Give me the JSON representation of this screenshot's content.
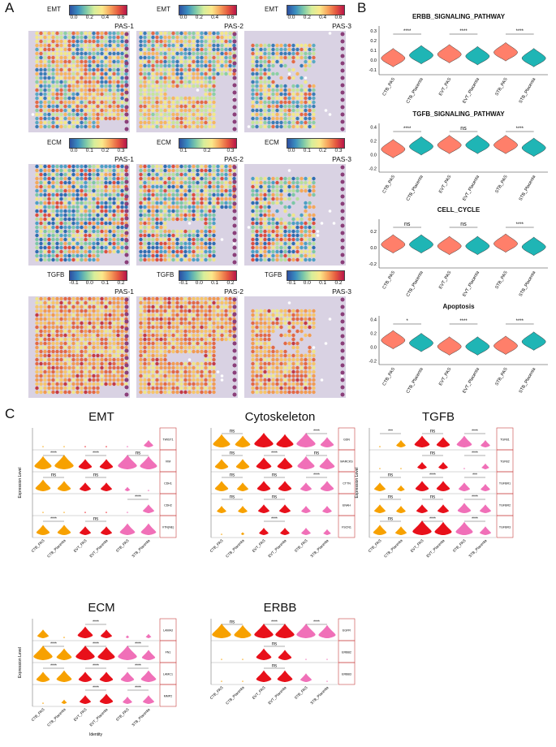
{
  "panel_labels": {
    "a": "A",
    "b": "B",
    "c": "C"
  },
  "colors": {
    "ctb": "#ff7f6a",
    "placenta": "#1fb5b5",
    "orange": "#f7a100",
    "red": "#e8101a",
    "pink": "#f070b8",
    "frame": "#c84040"
  },
  "panelA": {
    "rows": [
      {
        "metric": "EMT",
        "ticks": [
          [
            "0.0",
            "0.2",
            "0.4",
            "0.6"
          ],
          [
            "0.0",
            "0.2",
            "0.4",
            "0.6"
          ],
          [
            "0.0",
            "0.2",
            "0.4",
            "0.6"
          ]
        ],
        "samples": [
          "PAS-1",
          "PAS-2",
          "PAS-3"
        ]
      },
      {
        "metric": "ECM",
        "ticks": [
          [
            "0.0",
            "0.1",
            "0.2",
            "0.3"
          ],
          [
            "0.1",
            "0.2",
            "0.3"
          ],
          [
            "0.0",
            "0.1",
            "0.2",
            "0.3"
          ]
        ],
        "samples": [
          "PAS-1",
          "PAS-2",
          "PAS-3"
        ]
      },
      {
        "metric": "TGFB",
        "ticks": [
          [
            "-0.1",
            "0.0",
            "0.1",
            "0.2"
          ],
          [
            "-0.1",
            "0.0",
            "0.1",
            "0.2"
          ],
          [
            "-0.1",
            "0.0",
            "0.1",
            "0.2"
          ]
        ],
        "samples": [
          "PAS-1",
          "PAS-2",
          "PAS-3"
        ]
      }
    ]
  },
  "chart_data": [
    {
      "type": "violin",
      "panel": "B",
      "title": "ERBB_SIGNALING_PATHWAY",
      "categories": [
        "CTB_PAS",
        "CTB_Placenta",
        "EVT_PAS",
        "EVT_Placenta",
        "STB_PAS",
        "STB_Placenta"
      ],
      "ylim": [
        -0.15,
        0.35
      ],
      "yticks": [
        "0.3",
        "0.2",
        "0.1",
        "0.0",
        "-0.1"
      ],
      "medians": [
        0.02,
        0.05,
        0.06,
        0.04,
        0.08,
        0.02
      ],
      "comparisons": [
        "****",
        "****",
        "****"
      ]
    },
    {
      "type": "violin",
      "panel": "B",
      "title": "TGFB_SIGNALING_PATHWAY",
      "categories": [
        "CTB_PAS",
        "CTB_Placenta",
        "EVT_PAS",
        "EVT_Placenta",
        "STB_PAS",
        "STB_Placenta"
      ],
      "ylim": [
        -0.25,
        0.45
      ],
      "yticks": [
        "0.4",
        "0.2",
        "0.0",
        "-0.2"
      ],
      "medians": [
        0.08,
        0.12,
        0.14,
        0.14,
        0.14,
        0.1
      ],
      "comparisons": [
        "****",
        "ns",
        "****"
      ]
    },
    {
      "type": "violin",
      "panel": "B",
      "title": "CELL_CYCLE",
      "categories": [
        "CTB_PAS",
        "CTB_Placenta",
        "EVT_PAS",
        "EVT_Placenta",
        "STB_PAS",
        "STB_Placenta"
      ],
      "ylim": [
        -0.25,
        0.35
      ],
      "yticks": [
        "0.2",
        "0.0",
        "-0.2"
      ],
      "medians": [
        0.04,
        0.04,
        0.02,
        0.02,
        0.05,
        0.01
      ],
      "comparisons": [
        "ns",
        "ns",
        "****"
      ]
    },
    {
      "type": "violin",
      "panel": "B",
      "title": "Apoptosis",
      "categories": [
        "CTB_PAS",
        "CTB_Placenta",
        "EVT_PAS",
        "EVT_Placenta",
        "STB_PAS",
        "STB_Placenta"
      ],
      "ylim": [
        -0.25,
        0.45
      ],
      "yticks": [
        "0.4",
        "0.2",
        "0.0",
        "-0.2"
      ],
      "medians": [
        0.1,
        0.06,
        0.01,
        0.01,
        0.02,
        0.08
      ],
      "comparisons": [
        "*",
        "****",
        "****"
      ]
    },
    {
      "type": "violin",
      "panel": "C",
      "title": "EMT",
      "ylabel": "Expression Level",
      "categories": [
        "CTB_PAS",
        "CTB_Placenta",
        "EVT_PAS",
        "EVT_Placenta",
        "STB_PAS",
        "STB_Placenta"
      ],
      "genes": [
        {
          "name": "TWIST1",
          "sizes": [
            0.05,
            0.05,
            0.05,
            0.05,
            0.1,
            0.5
          ],
          "comparisons": [
            "",
            "",
            ""
          ]
        },
        {
          "name": "VIM",
          "sizes": [
            0.9,
            1,
            0.7,
            0.7,
            1,
            0.9
          ],
          "comparisons": [
            "****",
            "****",
            "ns"
          ]
        },
        {
          "name": "CDH1",
          "sizes": [
            0.8,
            0.7,
            0.6,
            0.6,
            0.3,
            0.1
          ],
          "comparisons": [
            "ns",
            "ns",
            ""
          ]
        },
        {
          "name": "CDH2",
          "sizes": [
            0.05,
            0.05,
            0.05,
            0.05,
            0.1,
            0.6
          ],
          "comparisons": [
            "",
            "",
            "****"
          ]
        },
        {
          "name": "VTN(NE)",
          "sizes": [
            0.7,
            0.7,
            0.6,
            0.6,
            0.8,
            0.8
          ],
          "comparisons": [
            "****",
            "ns",
            ""
          ]
        }
      ]
    },
    {
      "type": "violin",
      "panel": "C",
      "title": "Cytoskeleton",
      "categories": [
        "CTB_PAS",
        "CTB_Placenta",
        "EVT_PAS",
        "EVT_Placenta",
        "STB_PAS",
        "STB_Placenta"
      ],
      "genes": [
        {
          "name": "GSN",
          "sizes": [
            0.9,
            0.8,
            1,
            0.9,
            1,
            0.7
          ],
          "comparisons": [
            "ns",
            "",
            "****"
          ]
        },
        {
          "name": "MARCKS",
          "sizes": [
            0.7,
            0.7,
            0.8,
            0.8,
            0.9,
            0.8
          ],
          "comparisons": [
            "ns",
            "****",
            "ns"
          ]
        },
        {
          "name": "CTTN",
          "sizes": [
            0.7,
            0.6,
            0.7,
            0.7,
            0.6,
            0.7
          ],
          "comparisons": [
            "ns",
            "ns",
            "****"
          ]
        },
        {
          "name": "ENAH",
          "sizes": [
            0.5,
            0.5,
            0.6,
            0.6,
            0.5,
            0.5
          ],
          "comparisons": [
            "ns",
            "ns",
            ""
          ]
        },
        {
          "name": "FSCN1",
          "sizes": [
            0.1,
            0.2,
            0.5,
            0.5,
            0.5,
            0.4
          ],
          "comparisons": [
            "",
            "****",
            ""
          ]
        }
      ]
    },
    {
      "type": "violin",
      "panel": "C",
      "title": "TGFB",
      "ylabel": "Expression Level",
      "categories": [
        "CTB_PAS",
        "CTB_Placenta",
        "EVT_PAS",
        "EVT_Placenta",
        "STB_PAS",
        "STB_Placenta"
      ],
      "genes": [
        {
          "name": "TGFB1",
          "sizes": [
            0.1,
            0.5,
            0.8,
            0.7,
            0.8,
            0.5
          ],
          "comparisons": [
            "***",
            "ns",
            "****"
          ]
        },
        {
          "name": "TGFB2",
          "sizes": [
            0.05,
            0.05,
            0.5,
            0.5,
            0.1,
            0.4
          ],
          "comparisons": [
            "",
            "ns",
            "****"
          ]
        },
        {
          "name": "TGFBR1",
          "sizes": [
            0.6,
            0.4,
            0.7,
            0.7,
            0.6,
            0.5
          ],
          "comparisons": [
            "ns",
            "****",
            "***"
          ]
        },
        {
          "name": "TGFBR2",
          "sizes": [
            0.6,
            0.5,
            0.6,
            0.6,
            0.7,
            0.6
          ],
          "comparisons": [
            "ns",
            "ns",
            "****"
          ]
        },
        {
          "name": "TGFBR3",
          "sizes": [
            0.7,
            0.6,
            1,
            0.9,
            0.9,
            0.6
          ],
          "comparisons": [
            "ns",
            "****",
            "****"
          ]
        }
      ]
    },
    {
      "type": "violin",
      "panel": "C",
      "title": "ECM",
      "ylabel": "Expression Level",
      "xlabel": "Identity",
      "categories": [
        "CTB_PAS",
        "CTB_Placenta",
        "EVT_PAS",
        "EVT_Placenta",
        "STB_PAS",
        "STB_Placenta"
      ],
      "genes": [
        {
          "name": "LAMA3",
          "sizes": [
            0.6,
            0.1,
            0.8,
            0.6,
            0.2,
            0.3
          ],
          "comparisons": [
            "",
            "****",
            ""
          ]
        },
        {
          "name": "FN1",
          "sizes": [
            1,
            0.8,
            1,
            0.9,
            1,
            0.7
          ],
          "comparisons": [
            "****",
            "****",
            "****"
          ]
        },
        {
          "name": "LAMC1",
          "sizes": [
            0.7,
            0.8,
            0.7,
            0.7,
            0.7,
            0.8
          ],
          "comparisons": [
            "****",
            "****",
            "****"
          ]
        },
        {
          "name": "MMP2",
          "sizes": [
            0.1,
            0.3,
            0.6,
            0.7,
            0.5,
            0.6
          ],
          "comparisons": [
            "",
            "****",
            "****"
          ]
        }
      ]
    },
    {
      "type": "violin",
      "panel": "C",
      "title": "ERBB",
      "categories": [
        "CTB_PAS",
        "CTB_Placenta",
        "EVT_PAS",
        "EVT_Placenta",
        "STB_PAS",
        "STB_Placenta"
      ],
      "genes": [
        {
          "name": "EGFR",
          "sizes": [
            1,
            0.9,
            1,
            1,
            1,
            0.9
          ],
          "comparisons": [
            "ns",
            "****",
            "****"
          ]
        },
        {
          "name": "ERBB2",
          "sizes": [
            0.05,
            0.05,
            0.8,
            0.7,
            0.05,
            0.05
          ],
          "comparisons": [
            "",
            "ns",
            ""
          ]
        },
        {
          "name": "ERBB3",
          "sizes": [
            0.05,
            0.05,
            0.8,
            0.8,
            0.6,
            0.05
          ],
          "comparisons": [
            "",
            "ns",
            ""
          ]
        }
      ]
    }
  ]
}
